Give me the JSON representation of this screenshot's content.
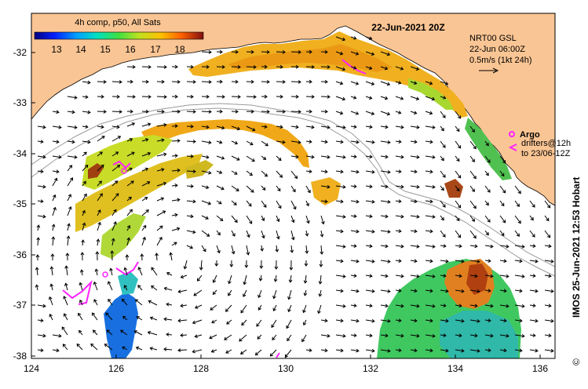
{
  "colorbar": {
    "title": "4h comp, p50, All Sats",
    "ticks": [
      "13",
      "14",
      "15",
      "16",
      "17",
      "18"
    ]
  },
  "date_title": "22-Jun-2021 20Z",
  "model_info": {
    "line1": "NRT00 GSL",
    "line2": "22-Jun 06:00Z",
    "line3": "0.5m/s (1kt 24h)"
  },
  "argo_legend": {
    "argo_label": "Argo",
    "drifters_line1": "drifters@12h",
    "drifters_line2": "to 23/06-12Z"
  },
  "credit": "IMOS 25-Jun-2021 12:53 Hobart",
  "credit_symbol": "©",
  "axes": {
    "x_ticks": [
      "124",
      "126",
      "128",
      "130",
      "132",
      "134",
      "136"
    ],
    "y_ticks": [
      "-32",
      "-33",
      "-34",
      "-35",
      "-36",
      "-37",
      "-38"
    ]
  },
  "colors": {
    "land": "#fac594",
    "ocean": "#ffffff",
    "argo": "#ff22ff"
  }
}
